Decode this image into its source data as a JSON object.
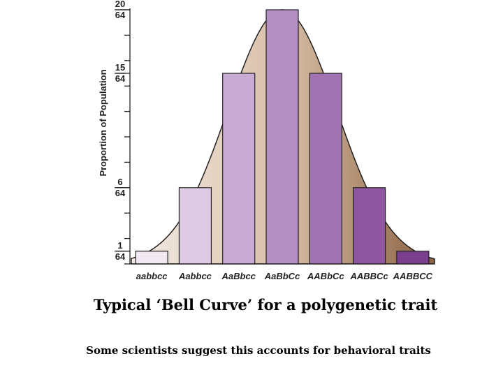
{
  "chart_data": {
    "type": "bar",
    "ylabel": "Proportion of Population",
    "categories": [
      "aabbcc",
      "Aabbcc",
      "AaBbcc",
      "AaBbCc",
      "AABbCc",
      "AABBCc",
      "AABBCC"
    ],
    "values": [
      1,
      6,
      15,
      20,
      15,
      6,
      1
    ],
    "value_denominator": 64,
    "ylim": [
      0,
      20
    ],
    "y_tick_labels": [
      {
        "value": 1,
        "num": "1",
        "den": "64"
      },
      {
        "value": 6,
        "num": "6",
        "den": "64"
      },
      {
        "value": 15,
        "num": "15",
        "den": "64"
      },
      {
        "value": 20,
        "num": "20",
        "den": "64"
      }
    ],
    "bar_colors": [
      "#f1e8f1",
      "#decbe3",
      "#c9acd6",
      "#b48fc4",
      "#a273b3",
      "#8f56a0",
      "#7a3e8f"
    ],
    "curve_colors": [
      "#f3ece6",
      "#d9bfa7",
      "#8a6040"
    ],
    "grid": false
  },
  "caption": {
    "title": "Typical ‘Bell Curve’ for a polygenetic trait",
    "subtitle": "Some scientists suggest this accounts for behavioral traits"
  }
}
